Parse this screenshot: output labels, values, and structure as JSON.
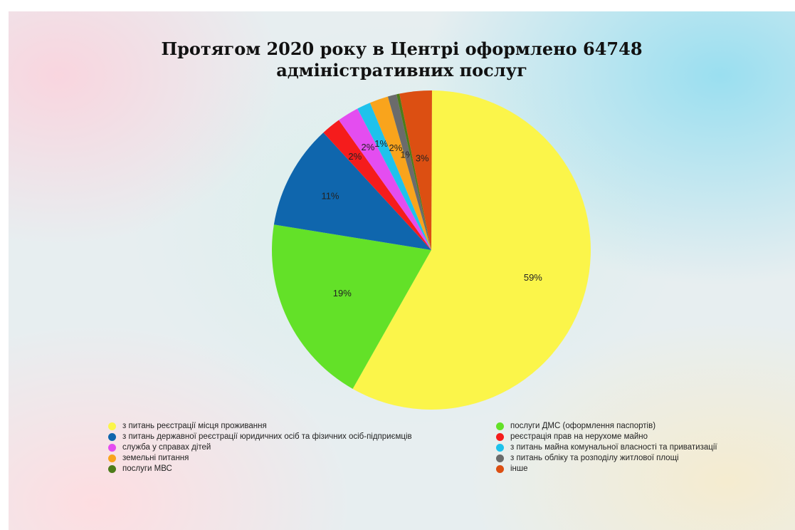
{
  "chart_data": {
    "type": "pie",
    "title": [
      "Протягом 2020 року в Центрі оформлено 64748",
      "адміністративних послуг"
    ],
    "legend_placement": "bottom",
    "slices": [
      {
        "label": "з питань реєстрації місця проживання",
        "percent_label": "59%",
        "value": 58.6,
        "color": "#fbf54a"
      },
      {
        "label": "послуги ДМС (оформлення паспортів)",
        "percent_label": "19%",
        "value": 19.5,
        "color": "#63e128"
      },
      {
        "label": "з питань державної реєстрації юридичних осіб та фізичних осіб-підприємців",
        "percent_label": "11%",
        "value": 10.7,
        "color": "#0f66ad"
      },
      {
        "label": "реєстрація прав на нерухоме майно",
        "percent_label": "2%",
        "value": 2.0,
        "color": "#f51c1c"
      },
      {
        "label": "служба у справах дітей",
        "percent_label": "2%",
        "value": 2.2,
        "color": "#e44df0"
      },
      {
        "label": "з питань майна комунальної власності та приватизації",
        "percent_label": "1%",
        "value": 1.4,
        "color": "#1ec2ec"
      },
      {
        "label": "земельні питання",
        "percent_label": "2%",
        "value": 1.9,
        "color": "#f9a41c"
      },
      {
        "label": "з питань обліку та розподілу житлової площі",
        "percent_label": "1%",
        "value": 0.9,
        "color": "#6b6b6b"
      },
      {
        "label": "послуги МВС",
        "percent_label": "",
        "value": 0.3,
        "color": "#4d7c1a"
      },
      {
        "label": "інше",
        "percent_label": "3%",
        "value": 3.3,
        "color": "#dc4f12"
      }
    ]
  }
}
